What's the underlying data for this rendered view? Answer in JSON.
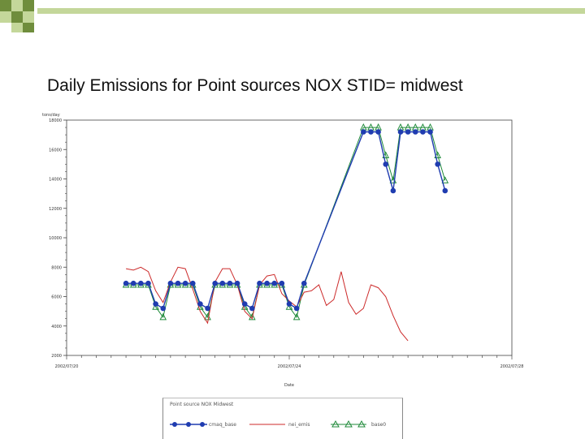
{
  "slide": {
    "title": "Daily Emissions for Point sources NOX STID= midwest",
    "colors": {
      "dark_green": "#6f8d3c",
      "light_green": "#c4d79a",
      "blue": "#1f3cb0",
      "red": "#cc2a2a",
      "green": "#1f8a3a"
    }
  },
  "chart_data": {
    "type": "line",
    "title": "Daily Emissions for Point sources NOX STID= midwest",
    "ylabel": "tons/day",
    "xlabel": "Date",
    "ylim": [
      2000,
      18000
    ],
    "yticks": [
      2000,
      4000,
      6000,
      8000,
      10000,
      12000,
      14000,
      16000,
      18000
    ],
    "xlim": [
      0,
      30
    ],
    "xtick_positions": [
      0,
      15,
      30
    ],
    "xtick_labels": [
      "2002/07/20",
      "2002/07/24",
      "2002/07/28"
    ],
    "x": [
      4,
      4.5,
      5,
      5.5,
      6,
      6.5,
      7,
      7.5,
      8,
      8.5,
      9,
      9.5,
      10,
      10.5,
      11,
      11.5,
      12,
      12.5,
      13,
      13.5,
      14,
      14.5,
      15,
      15.5,
      16,
      16.5,
      17,
      17.5,
      18,
      18.5,
      19,
      19.5,
      20,
      20.5,
      21,
      21.5,
      22,
      22.5,
      23,
      23.5,
      24,
      24.5,
      25,
      25.5,
      26,
      26.5
    ],
    "series": [
      {
        "name": "cmaq_base",
        "color": "#1f3cb0",
        "marker": "circle",
        "values": [
          6900,
          6900,
          6900,
          6900,
          5500,
          5200,
          6900,
          6900,
          6900,
          6900,
          5500,
          5200,
          6900,
          6900,
          6900,
          6900,
          5500,
          5200,
          6900,
          6900,
          6900,
          6900,
          5500,
          5200,
          6900,
          null,
          null,
          null,
          null,
          null,
          null,
          null,
          17200,
          17200,
          17200,
          15000,
          13200,
          17200,
          17200,
          17200,
          17200,
          17200,
          15000,
          13200,
          null,
          null
        ]
      },
      {
        "name": "nei_emis",
        "color": "#cc2a2a",
        "marker": "none",
        "values": [
          7900,
          7800,
          8000,
          7700,
          6400,
          5600,
          7000,
          8000,
          7900,
          6500,
          5000,
          4200,
          7000,
          7900,
          7900,
          6800,
          5000,
          4500,
          6800,
          7400,
          7500,
          6200,
          5700,
          5300,
          6300,
          6400,
          6800,
          5400,
          5800,
          7700,
          5600,
          4800,
          5200,
          6800,
          6600,
          6000,
          4700,
          3600,
          3000,
          null,
          null,
          null,
          null,
          null,
          null,
          null
        ]
      },
      {
        "name": "base0",
        "color": "#1f8a3a",
        "marker": "triangle",
        "values": [
          6800,
          6800,
          6800,
          6800,
          5300,
          4600,
          6800,
          6800,
          6800,
          6800,
          5300,
          4600,
          6800,
          6800,
          6800,
          6800,
          5300,
          4600,
          6800,
          6800,
          6800,
          6800,
          5300,
          4600,
          6800,
          null,
          null,
          null,
          null,
          null,
          null,
          null,
          17500,
          17500,
          17500,
          15600,
          13900,
          17500,
          17500,
          17500,
          17500,
          17500,
          15600,
          13900,
          null,
          null
        ]
      }
    ],
    "legend": {
      "position": "bottom",
      "title": "Point source NOX Midwest",
      "labels": [
        "cmaq_base",
        "nei_emis",
        "base0"
      ]
    },
    "grid": false
  }
}
